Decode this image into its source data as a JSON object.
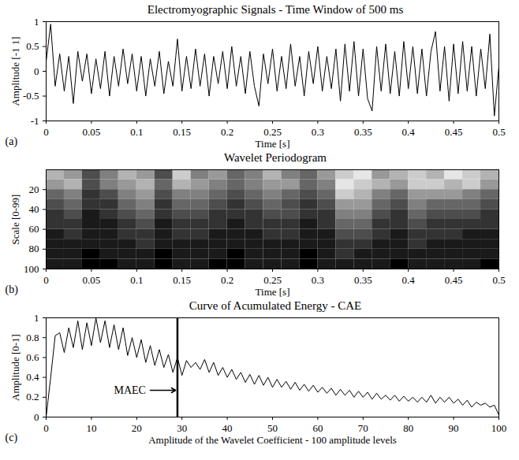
{
  "chart_data": [
    {
      "type": "line",
      "title": "Electromyographic Signals - Time Window of 500 ms",
      "panel_label": "(a)",
      "x_label": "Time [s]",
      "y_label": "Amplitude [-1 1]",
      "color": "#000000",
      "x": [
        0,
        0.005,
        0.01,
        0.015,
        0.02,
        0.025,
        0.03,
        0.035,
        0.04,
        0.045,
        0.05,
        0.055,
        0.06,
        0.065,
        0.07,
        0.075,
        0.08,
        0.085,
        0.09,
        0.095,
        0.1,
        0.105,
        0.11,
        0.115,
        0.12,
        0.125,
        0.13,
        0.135,
        0.14,
        0.145,
        0.15,
        0.155,
        0.16,
        0.165,
        0.17,
        0.175,
        0.18,
        0.185,
        0.19,
        0.195,
        0.2,
        0.205,
        0.21,
        0.215,
        0.22,
        0.225,
        0.23,
        0.235,
        0.24,
        0.245,
        0.25,
        0.255,
        0.26,
        0.265,
        0.27,
        0.275,
        0.28,
        0.285,
        0.29,
        0.295,
        0.3,
        0.305,
        0.31,
        0.315,
        0.32,
        0.325,
        0.33,
        0.335,
        0.34,
        0.345,
        0.35,
        0.355,
        0.36,
        0.365,
        0.37,
        0.375,
        0.38,
        0.385,
        0.39,
        0.395,
        0.4,
        0.405,
        0.41,
        0.415,
        0.42,
        0.425,
        0.43,
        0.435,
        0.44,
        0.445,
        0.45,
        0.455,
        0.46,
        0.465,
        0.47,
        0.475,
        0.48,
        0.485,
        0.49,
        0.495,
        0.5
      ],
      "values": [
        0.2,
        0.95,
        -0.3,
        0.35,
        -0.4,
        0.3,
        -0.65,
        0.4,
        -0.2,
        0.35,
        -0.45,
        0.25,
        -0.35,
        0.4,
        -0.5,
        0.3,
        -0.3,
        0.45,
        -0.25,
        0.35,
        -0.4,
        0.3,
        -0.5,
        0.25,
        -0.3,
        0.4,
        -0.45,
        0.2,
        -0.3,
        0.65,
        -0.4,
        0.3,
        -0.35,
        0.45,
        -0.3,
        0.35,
        -0.5,
        0.3,
        -0.25,
        0.4,
        -0.35,
        0.5,
        -0.3,
        0.3,
        -0.45,
        0.4,
        -0.3,
        -0.7,
        0.35,
        -0.25,
        0.45,
        -0.4,
        0.3,
        -0.35,
        0.55,
        -0.3,
        0.3,
        -0.5,
        0.4,
        -0.25,
        0.5,
        -0.4,
        0.3,
        -0.35,
        0.45,
        -0.6,
        0.55,
        -0.4,
        0.6,
        -0.5,
        0.45,
        -0.55,
        -0.8,
        0.5,
        -0.4,
        0.55,
        -0.45,
        0.4,
        -0.5,
        0.6,
        -0.35,
        0.5,
        -0.45,
        0.45,
        -0.5,
        0.4,
        0.8,
        -0.4,
        0.5,
        -0.6,
        0.55,
        -0.45,
        0.6,
        -0.4,
        0.5,
        -0.5,
        0.45,
        -0.35,
        0.75,
        -0.9,
        0.1
      ],
      "xlim": [
        0,
        0.5
      ],
      "xticks": [
        0,
        0.05,
        0.1,
        0.15,
        0.2,
        0.25,
        0.3,
        0.35,
        0.4,
        0.45,
        0.5
      ],
      "ylim": [
        -1,
        1
      ],
      "yticks": [
        -1,
        -0.5,
        0,
        0.5,
        1
      ]
    },
    {
      "type": "heatmap",
      "title": "Wavelet Periodogram",
      "panel_label": "(b)",
      "x_label": "Time [s]",
      "y_label": "Scale [0-99]",
      "time_bins": [
        0,
        0.02,
        0.04,
        0.06,
        0.08,
        0.1,
        0.12,
        0.14,
        0.16,
        0.18,
        0.2,
        0.22,
        0.24,
        0.26,
        0.28,
        0.3,
        0.32,
        0.34,
        0.36,
        0.38,
        0.4,
        0.42,
        0.44,
        0.46,
        0.48,
        0.5
      ],
      "scale_bins": [
        0,
        10,
        20,
        30,
        40,
        50,
        60,
        70,
        80,
        90,
        100
      ],
      "cells": [
        [
          0.7,
          0.6,
          0.3,
          0.5,
          0.7,
          0.6,
          0.3,
          0.8,
          0.5,
          0.6,
          0.4,
          0.5,
          0.7,
          0.5,
          0.4,
          0.6,
          0.8,
          0.9,
          0.6,
          0.7,
          0.8,
          0.7,
          0.9,
          0.8,
          0.7
        ],
        [
          0.6,
          0.7,
          0.3,
          0.5,
          0.6,
          0.7,
          0.4,
          0.7,
          0.6,
          0.5,
          0.4,
          0.5,
          0.6,
          0.6,
          0.4,
          0.5,
          0.9,
          0.8,
          0.7,
          0.6,
          0.8,
          0.8,
          0.7,
          0.8,
          0.6
        ],
        [
          0.4,
          0.5,
          0.2,
          0.3,
          0.5,
          0.6,
          0.3,
          0.5,
          0.5,
          0.4,
          0.3,
          0.4,
          0.5,
          0.4,
          0.3,
          0.4,
          0.8,
          0.7,
          0.5,
          0.4,
          0.6,
          0.6,
          0.6,
          0.5,
          0.4
        ],
        [
          0.3,
          0.4,
          0.2,
          0.2,
          0.4,
          0.5,
          0.2,
          0.4,
          0.4,
          0.3,
          0.2,
          0.3,
          0.4,
          0.3,
          0.2,
          0.3,
          0.6,
          0.6,
          0.4,
          0.3,
          0.5,
          0.4,
          0.4,
          0.4,
          0.3
        ],
        [
          0.2,
          0.3,
          0.1,
          0.2,
          0.3,
          0.4,
          0.2,
          0.3,
          0.3,
          0.2,
          0.2,
          0.2,
          0.3,
          0.3,
          0.2,
          0.2,
          0.5,
          0.5,
          0.3,
          0.2,
          0.4,
          0.3,
          0.3,
          0.3,
          0.2
        ],
        [
          0.2,
          0.2,
          0.1,
          0.1,
          0.2,
          0.3,
          0.1,
          0.2,
          0.2,
          0.2,
          0.1,
          0.2,
          0.2,
          0.2,
          0.1,
          0.2,
          0.4,
          0.4,
          0.2,
          0.2,
          0.3,
          0.2,
          0.2,
          0.2,
          0.2
        ],
        [
          0.1,
          0.2,
          0.1,
          0.1,
          0.2,
          0.2,
          0.1,
          0.2,
          0.2,
          0.1,
          0.1,
          0.1,
          0.2,
          0.2,
          0.1,
          0.1,
          0.3,
          0.3,
          0.2,
          0.1,
          0.2,
          0.2,
          0.2,
          0.1,
          0.1
        ],
        [
          0.1,
          0.1,
          0.1,
          0.1,
          0.1,
          0.2,
          0.1,
          0.1,
          0.1,
          0.1,
          0.1,
          0.1,
          0.1,
          0.1,
          0.1,
          0.1,
          0.2,
          0.2,
          0.1,
          0.1,
          0.2,
          0.1,
          0.1,
          0.1,
          0.1
        ],
        [
          0.1,
          0.1,
          0,
          0.1,
          0.1,
          0.1,
          0,
          0.1,
          0.1,
          0.1,
          0,
          0.1,
          0.1,
          0.1,
          0,
          0.1,
          0.2,
          0.1,
          0.1,
          0.1,
          0.1,
          0.1,
          0.1,
          0.1,
          0.1
        ],
        [
          0.1,
          0.1,
          0,
          0,
          0.1,
          0.1,
          0,
          0.1,
          0.1,
          0,
          0,
          0.1,
          0.1,
          0.1,
          0,
          0.1,
          0.1,
          0.1,
          0.1,
          0,
          0.1,
          0.1,
          0.1,
          0.1,
          0
        ]
      ],
      "zlim": [
        0,
        1
      ],
      "xlim": [
        0,
        0.5
      ],
      "xticks": [
        0,
        0.05,
        0.1,
        0.15,
        0.2,
        0.25,
        0.3,
        0.35,
        0.4,
        0.45,
        0.5
      ],
      "ylim": [
        0,
        100
      ],
      "yticks": [
        20,
        40,
        60,
        80,
        100
      ]
    },
    {
      "type": "line",
      "title": "Curve of Acumulated Energy - CAE",
      "panel_label": "(c)",
      "x_label": "Amplitude of the Wavelet Coefficient - 100 amplitude levels",
      "y_label": "Amplitude [0-1]",
      "color": "#000000",
      "x": [
        0,
        1,
        2,
        3,
        4,
        5,
        6,
        7,
        8,
        9,
        10,
        11,
        12,
        13,
        14,
        15,
        16,
        17,
        18,
        19,
        20,
        21,
        22,
        23,
        24,
        25,
        26,
        27,
        28,
        29,
        30,
        31,
        32,
        33,
        34,
        35,
        36,
        37,
        38,
        39,
        40,
        41,
        42,
        43,
        44,
        45,
        46,
        47,
        48,
        49,
        50,
        51,
        52,
        53,
        54,
        55,
        56,
        57,
        58,
        59,
        60,
        61,
        62,
        63,
        64,
        65,
        66,
        67,
        68,
        69,
        70,
        71,
        72,
        73,
        74,
        75,
        76,
        77,
        78,
        79,
        80,
        81,
        82,
        83,
        84,
        85,
        86,
        87,
        88,
        89,
        90,
        91,
        92,
        93,
        94,
        95,
        96,
        97,
        98,
        99,
        100
      ],
      "values": [
        0,
        0.4,
        0.82,
        0.85,
        0.65,
        0.9,
        0.7,
        0.97,
        0.68,
        0.95,
        0.72,
        1.0,
        0.75,
        0.97,
        0.7,
        0.93,
        0.68,
        0.9,
        0.62,
        0.8,
        0.6,
        0.78,
        0.55,
        0.72,
        0.52,
        0.68,
        0.5,
        0.63,
        0.45,
        0.6,
        0.42,
        0.57,
        0.5,
        0.55,
        0.48,
        0.58,
        0.45,
        0.55,
        0.42,
        0.5,
        0.4,
        0.48,
        0.38,
        0.45,
        0.35,
        0.43,
        0.33,
        0.42,
        0.32,
        0.4,
        0.3,
        0.38,
        0.3,
        0.36,
        0.28,
        0.35,
        0.27,
        0.33,
        0.26,
        0.32,
        0.25,
        0.3,
        0.24,
        0.29,
        0.22,
        0.28,
        0.22,
        0.27,
        0.2,
        0.26,
        0.2,
        0.25,
        0.18,
        0.24,
        0.18,
        0.22,
        0.17,
        0.22,
        0.16,
        0.21,
        0.16,
        0.2,
        0.15,
        0.2,
        0.15,
        0.22,
        0.14,
        0.2,
        0.15,
        0.2,
        0.14,
        0.18,
        0.12,
        0.17,
        0.1,
        0.15,
        0.12,
        0.14,
        0.1,
        0.12,
        0.02
      ],
      "xlim": [
        0,
        100
      ],
      "xticks": [
        0,
        10,
        20,
        30,
        40,
        50,
        60,
        70,
        80,
        90,
        100
      ],
      "ylim": [
        0,
        1
      ],
      "yticks": [
        0,
        0.2,
        0.4,
        0.6,
        0.8,
        1
      ],
      "annotations": [
        {
          "text": "MAEC",
          "x": 29,
          "y": 0.27
        }
      ]
    }
  ]
}
